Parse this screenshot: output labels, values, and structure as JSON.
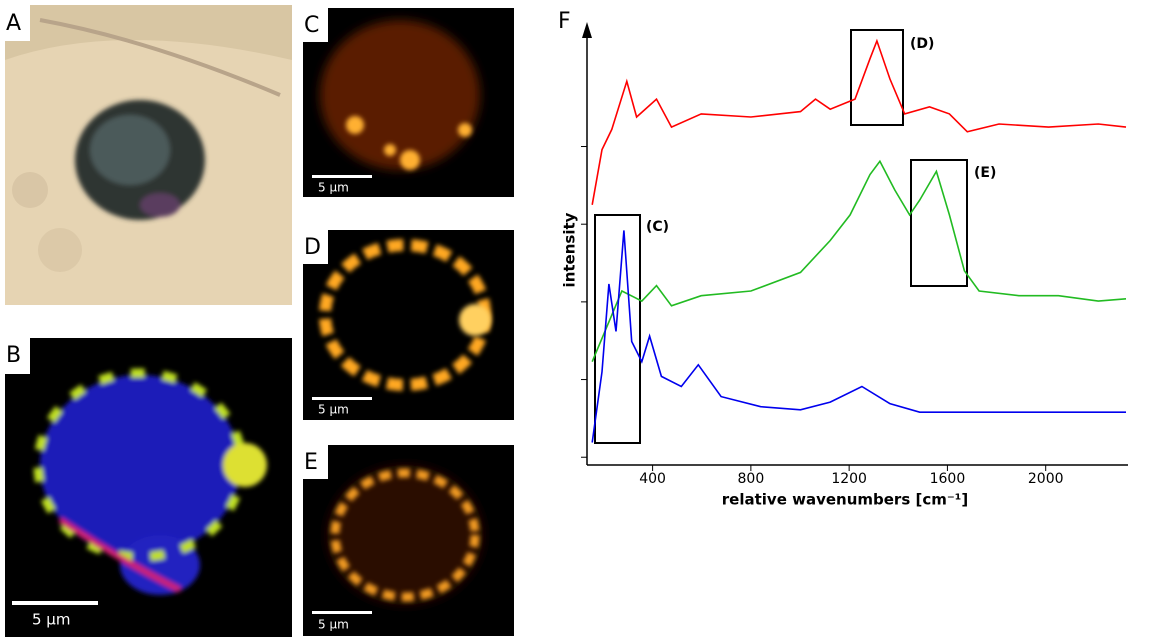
{
  "panels": [
    {
      "label": "A"
    },
    {
      "label": "B",
      "scale_bar": "5 µm"
    },
    {
      "label": "C",
      "scale_bar": "5 µm"
    },
    {
      "label": "D",
      "scale_bar": "5 µm"
    },
    {
      "label": "E",
      "scale_bar": "5 µm"
    }
  ],
  "chart_data": {
    "type": "line",
    "panel_label": "F",
    "x_label": "relative wavenumbers [cm⁻¹]",
    "y_label": "intensity",
    "xlim": [
      133,
      2335
    ],
    "xticks": [
      400,
      800,
      1200,
      1600,
      2000
    ],
    "ylim": [
      -0.1,
      5.5
    ],
    "yticks": [
      0,
      1,
      2,
      3,
      4
    ],
    "annotations": [
      "(D)",
      "(E)",
      "(C)"
    ],
    "series": [
      {
        "color": "#ff0000",
        "x": [
          154,
          194,
          234,
          295,
          335,
          416,
          477,
          598,
          800,
          1002,
          1063,
          1123,
          1224,
          1285,
          1313,
          1366,
          1426,
          1527,
          1608,
          1681,
          1810,
          2012,
          2214,
          2327
        ],
        "values": [
          3.25,
          3.96,
          4.22,
          4.84,
          4.38,
          4.61,
          4.25,
          4.42,
          4.38,
          4.45,
          4.61,
          4.48,
          4.61,
          5.13,
          5.36,
          4.87,
          4.42,
          4.51,
          4.42,
          4.19,
          4.29,
          4.25,
          4.29,
          4.25
        ]
      },
      {
        "color": "#22bb22",
        "x": [
          154,
          275,
          356,
          416,
          477,
          598,
          800,
          1002,
          1123,
          1204,
          1285,
          1325,
          1386,
          1446,
          1487,
          1555,
          1608,
          1669,
          1729,
          1891,
          2052,
          2214,
          2327
        ],
        "values": [
          1.23,
          2.14,
          2.01,
          2.21,
          1.95,
          2.08,
          2.14,
          2.38,
          2.79,
          3.12,
          3.64,
          3.81,
          3.44,
          3.12,
          3.31,
          3.68,
          3.12,
          2.4,
          2.14,
          2.08,
          2.08,
          2.01,
          2.04
        ]
      },
      {
        "color": "#0000ee",
        "x": [
          154,
          194,
          222,
          251,
          283,
          315,
          356,
          388,
          436,
          517,
          586,
          679,
          840,
          1002,
          1123,
          1252,
          1366,
          1487,
          1810,
          2327
        ],
        "values": [
          0.19,
          1.1,
          2.23,
          1.62,
          2.92,
          1.49,
          1.23,
          1.56,
          1.04,
          0.91,
          1.19,
          0.78,
          0.65,
          0.61,
          0.71,
          0.91,
          0.69,
          0.58,
          0.58,
          0.58
        ]
      }
    ]
  }
}
